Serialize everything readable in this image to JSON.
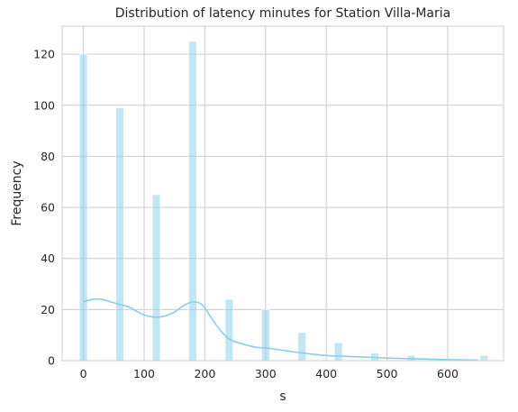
{
  "chart_data": {
    "type": "bar",
    "title": "Distribution of latency minutes for Station Villa-Maria",
    "xlabel": "s",
    "ylabel": "Frequency",
    "xlim": [
      -35,
      692
    ],
    "ylim": [
      0,
      131
    ],
    "xticks": [
      0,
      100,
      200,
      300,
      400,
      500,
      600
    ],
    "yticks": [
      0,
      20,
      40,
      60,
      80,
      100,
      120
    ],
    "grid": true,
    "bar_color": "#87ceeb",
    "kde_color": "#87ceeb",
    "bins": [
      {
        "x": 0,
        "value": 120
      },
      {
        "x": 60,
        "value": 99
      },
      {
        "x": 120,
        "value": 65
      },
      {
        "x": 180,
        "value": 125
      },
      {
        "x": 240,
        "value": 24
      },
      {
        "x": 300,
        "value": 20
      },
      {
        "x": 360,
        "value": 11
      },
      {
        "x": 420,
        "value": 7
      },
      {
        "x": 480,
        "value": 3
      },
      {
        "x": 540,
        "value": 2
      },
      {
        "x": 660,
        "value": 2
      }
    ],
    "bin_width": 13,
    "kde": {
      "x": [
        0,
        15,
        30,
        45,
        60,
        75,
        90,
        105,
        120,
        135,
        150,
        165,
        180,
        195,
        210,
        225,
        240,
        255,
        270,
        285,
        300,
        330,
        360,
        400,
        450,
        500,
        550,
        600,
        650
      ],
      "y": [
        23,
        24,
        24,
        23,
        22,
        21,
        19,
        17.5,
        17,
        17.5,
        19,
        21.5,
        23,
        22,
        17,
        12,
        8.5,
        7,
        6,
        5.2,
        5,
        4,
        3,
        2,
        1.5,
        1,
        0.7,
        0.4,
        0.2
      ]
    }
  }
}
